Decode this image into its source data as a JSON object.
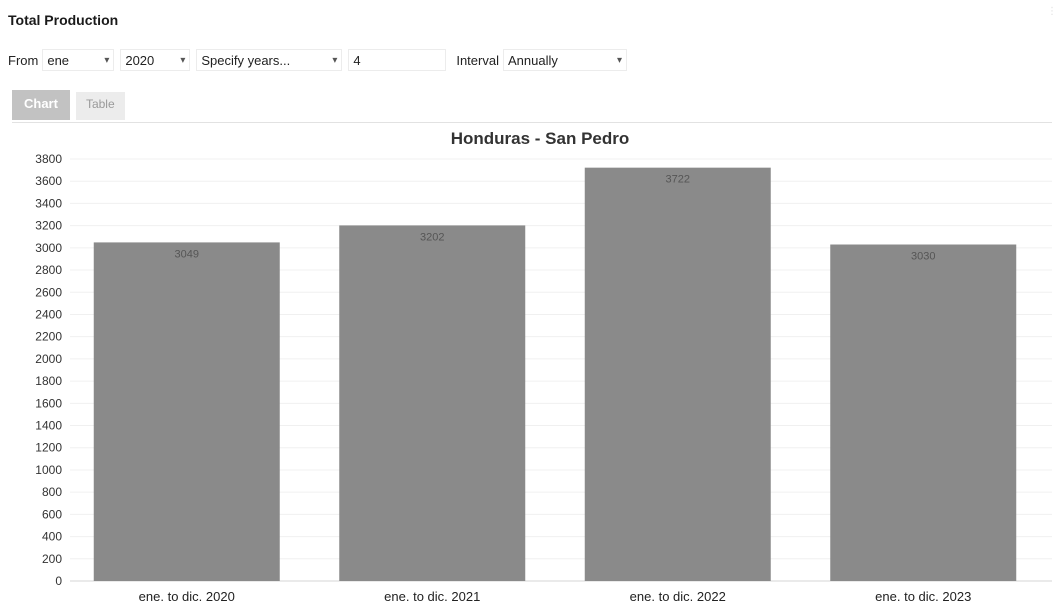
{
  "header": {
    "title": "Total Production"
  },
  "filters": {
    "from_label": "From",
    "month_value": "ene",
    "year_value": "2020",
    "mode_value": "Specify years...",
    "count_value": "4",
    "interval_label": "Interval",
    "interval_value": "Annually"
  },
  "tabs": [
    {
      "label": "Chart"
    },
    {
      "label": "Table"
    }
  ],
  "colors": {
    "bar": "#8a8a8a",
    "grid": "#f0f0f0",
    "tab_active": "#c2c2c2"
  },
  "chart_data": {
    "type": "bar",
    "title": "Honduras - San Pedro",
    "xlabel": "",
    "ylabel": "",
    "categories": [
      "ene. to dic. 2020",
      "ene. to dic. 2021",
      "ene. to dic. 2022",
      "ene. to dic. 2023"
    ],
    "values": [
      3049,
      3202,
      3722,
      3030
    ],
    "data_labels": [
      "3049",
      "3202",
      "3722",
      "3030"
    ],
    "ylim": [
      0,
      3800
    ],
    "yticks": [
      0,
      200,
      400,
      600,
      800,
      1000,
      1200,
      1400,
      1600,
      1800,
      2000,
      2200,
      2400,
      2600,
      2800,
      3000,
      3200,
      3400,
      3600,
      3800
    ],
    "grid": true,
    "legend": "none"
  }
}
